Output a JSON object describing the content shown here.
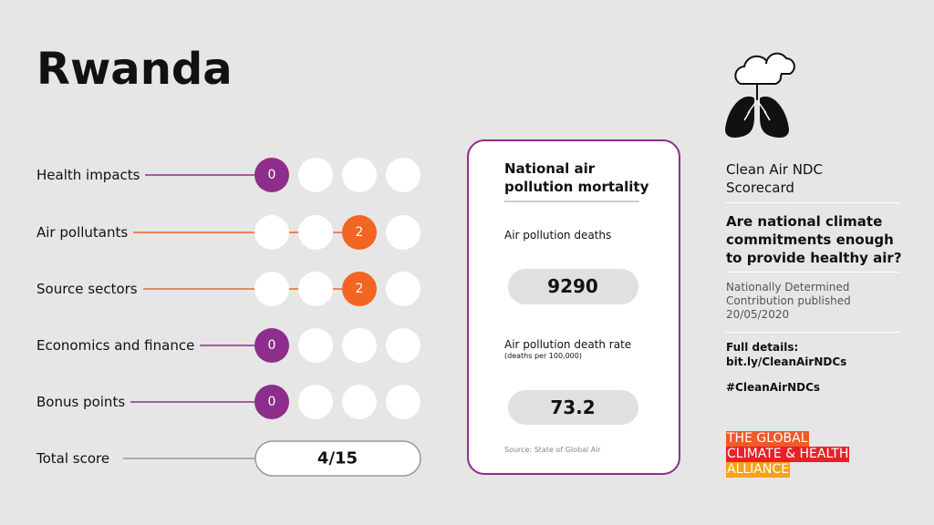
{
  "title": "Rwanda",
  "scores": [
    {
      "label": "Health impacts",
      "score": 0,
      "color": "#8e2e8c"
    },
    {
      "label": "Air pollutants",
      "score": 2,
      "color": "#f26522"
    },
    {
      "label": "Source sectors",
      "score": 2,
      "color": "#f26522"
    },
    {
      "label": "Economics and finance",
      "score": 0,
      "color": "#8e2e8c"
    },
    {
      "label": "Bonus points",
      "score": 0,
      "color": "#8e2e8c"
    }
  ],
  "total": {
    "label": "Total score",
    "value": "4/15"
  },
  "mortality": {
    "title": "National air pollution mortality",
    "deaths_label": "Air pollution deaths",
    "deaths": 9290,
    "rate_label": "Air pollution death rate",
    "rate_note": "(deaths per 100,000)",
    "rate": 73.2,
    "source": "Source: State of Global Air"
  },
  "sidebar": {
    "heading": "Clean Air NDC Scorecard",
    "question": "Are national climate commitments enough to provide healthy air?",
    "published": "Nationally Determined Contribution published 20/05/2020",
    "details_label": "Full details:",
    "details_link": "bit.ly/CleanAirNDCs",
    "hashtag": "#CleanAirNDCs",
    "logo": [
      "THE GLOBAL",
      "CLIMATE & HEALTH",
      "ALLIANCE"
    ]
  }
}
